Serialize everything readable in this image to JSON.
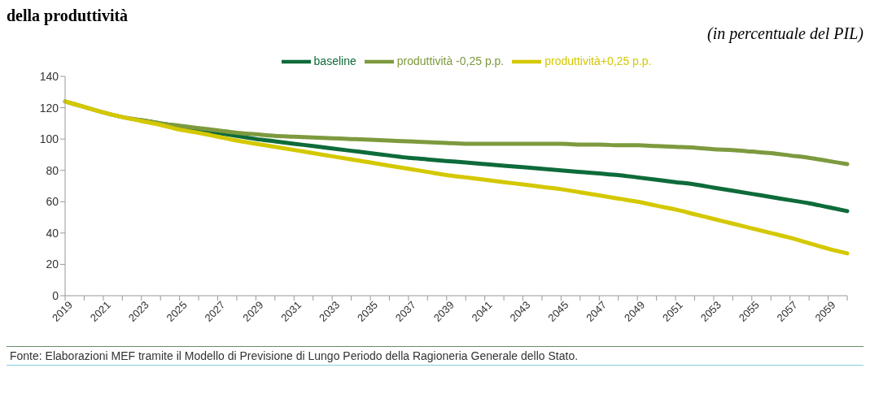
{
  "chart_data": {
    "type": "line",
    "title": "della produttività",
    "subtitle": "(in percentuale del PIL)",
    "categories": [
      "2019",
      null,
      "2021",
      null,
      "2023",
      null,
      "2025",
      null,
      "2027",
      null,
      "2029",
      null,
      "2031",
      null,
      "2033",
      null,
      "2035",
      null,
      "2037",
      null,
      "2039",
      null,
      "2041",
      null,
      "2043",
      null,
      "2045",
      null,
      "2047",
      null,
      "2049",
      null,
      "2051",
      null,
      "2053",
      null,
      "2055",
      null,
      "2057",
      null,
      "2059",
      null
    ],
    "series": [
      {
        "name": "baseline",
        "color": "#0e6b3a",
        "values": [
          null,
          null,
          null,
          null,
          112,
          110,
          108,
          106,
          104,
          102,
          100,
          98.5,
          97,
          95.5,
          94,
          92.5,
          91,
          89.5,
          88,
          87,
          86,
          85,
          84,
          83,
          82,
          81,
          80,
          79,
          78,
          77,
          75.5,
          74,
          72.5,
          71,
          69,
          67,
          65,
          63,
          61,
          59,
          56.5,
          54
        ]
      },
      {
        "name": "produttività -0,25 p.p.",
        "color": "#7d9a3e",
        "values": [
          124,
          120.5,
          117,
          114,
          112,
          110,
          108.5,
          107,
          105.5,
          104,
          103,
          102,
          101.5,
          101,
          100.5,
          100,
          99.5,
          99,
          98.5,
          98,
          97.5,
          97,
          97,
          97,
          97,
          97,
          97,
          96.5,
          96.5,
          96,
          96,
          95.5,
          95,
          94.5,
          93.5,
          93,
          92,
          91,
          89.5,
          88,
          86,
          84
        ]
      },
      {
        "name": "produttività+0,25 p.p.",
        "color": "#d4c800",
        "values": [
          124,
          120.5,
          117,
          114,
          111.5,
          109,
          106,
          104,
          101.5,
          99,
          97,
          95,
          93,
          91,
          89,
          87,
          85,
          83,
          81,
          79,
          77,
          75.5,
          74,
          72.5,
          71,
          69.5,
          68,
          66,
          64,
          62,
          60,
          57.5,
          55,
          52,
          49,
          46,
          43,
          40,
          37,
          33.5,
          30,
          27
        ]
      }
    ],
    "ylim": [
      0,
      140
    ],
    "yticks": [
      0,
      20,
      40,
      60,
      80,
      100,
      120,
      140
    ],
    "grid": false,
    "legend": "top",
    "marker": "none",
    "line_style": "solid",
    "annotations": [
      "Fonte: Elaborazioni MEF tramite il Modello di Previsione di Lungo Periodo della Ragioneria Generale dello Stato."
    ]
  }
}
